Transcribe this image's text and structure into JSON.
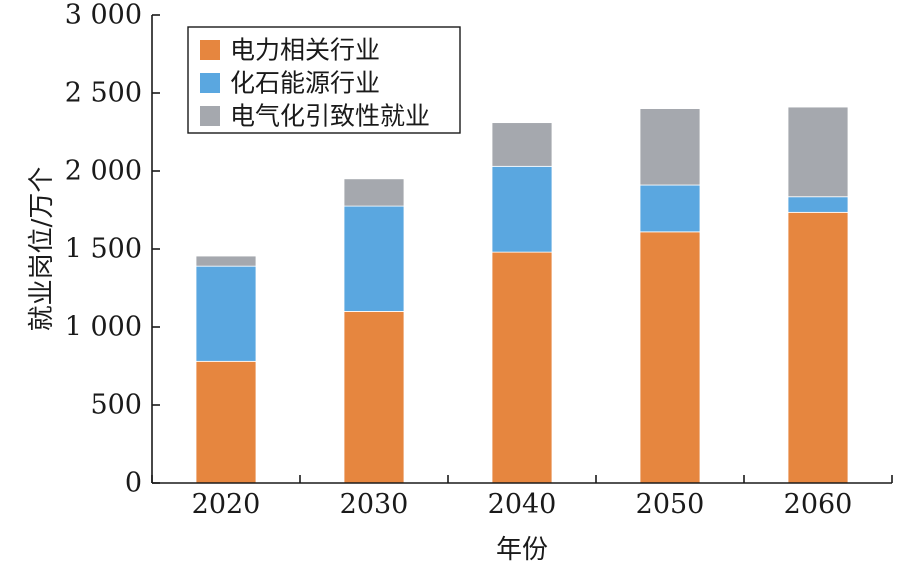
{
  "chart_data": {
    "type": "bar",
    "stacked": true,
    "categories": [
      "2020",
      "2030",
      "2040",
      "2050",
      "2060"
    ],
    "series": [
      {
        "name": "电力相关行业",
        "color": "#E6863F",
        "values": [
          780,
          1100,
          1480,
          1610,
          1735
        ]
      },
      {
        "name": "化石能源行业",
        "color": "#5AA7E0",
        "values": [
          610,
          675,
          550,
          300,
          100
        ]
      },
      {
        "name": "电气化引致性就业",
        "color": "#A5A8AE",
        "values": [
          65,
          175,
          280,
          490,
          575
        ]
      }
    ],
    "title": "",
    "xlabel": "年份",
    "ylabel": "就业岗位/万个",
    "ylim": [
      0,
      3000
    ],
    "yticks": [
      0,
      500,
      1000,
      1500,
      2000,
      2500,
      3000
    ],
    "ytick_labels": [
      "0",
      "500",
      "1 000",
      "1 500",
      "2 000",
      "2 500",
      "3 000"
    ],
    "grid": false,
    "legend_position": "top-left"
  }
}
